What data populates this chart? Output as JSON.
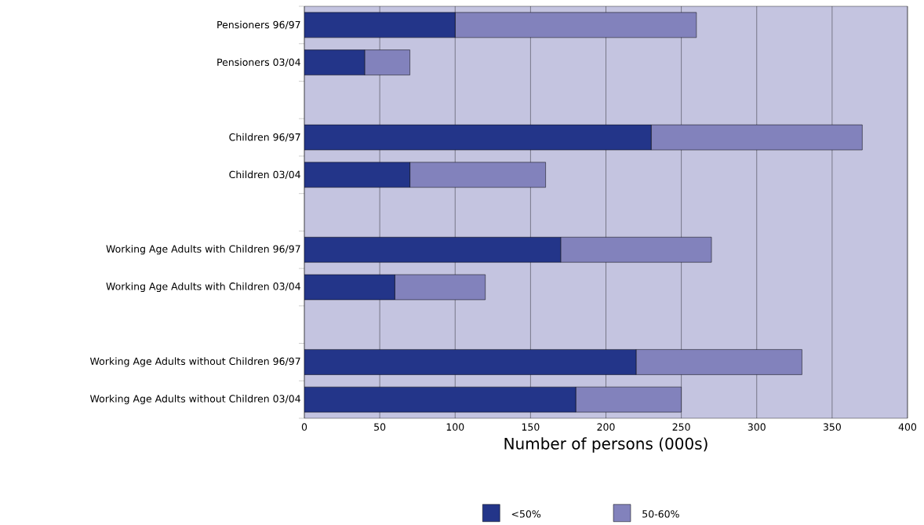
{
  "chart_data": {
    "type": "bar",
    "orientation": "horizontal",
    "stacked": true,
    "categories": [
      "Pensioners 96/97",
      "Pensioners 03/04",
      null,
      "Children 96/97",
      "Children 03/04",
      null,
      "Working Age Adults with Children 96/97",
      "Working Age Adults with Children 03/04",
      null,
      "Working Age Adults without Children 96/97",
      "Working Age Adults without Children 03/04"
    ],
    "series": [
      {
        "name": "<50%",
        "color": "#233589",
        "values": [
          100,
          40,
          null,
          230,
          70,
          null,
          170,
          60,
          null,
          220,
          180
        ]
      },
      {
        "name": "50-60%",
        "color": "#8282bc",
        "values": [
          160,
          30,
          null,
          140,
          90,
          null,
          100,
          60,
          null,
          110,
          70
        ]
      }
    ],
    "xlim": [
      0,
      400
    ],
    "xticks": [
      0,
      50,
      100,
      150,
      200,
      250,
      300,
      350,
      400
    ],
    "xlabel": "Number of persons (000s)",
    "grid": "x",
    "legend": "bottom"
  }
}
